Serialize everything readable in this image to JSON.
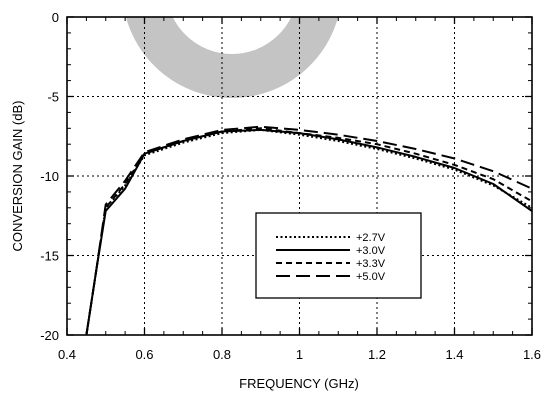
{
  "chart_data": {
    "type": "line",
    "title": "",
    "xlabel": "FREQUENCY (GHz)",
    "ylabel": "CONVERSION GAIN (dB)",
    "xlim": [
      0.4,
      1.6
    ],
    "ylim": [
      -20,
      0
    ],
    "xticks": [
      0.4,
      0.6,
      0.8,
      1.0,
      1.2,
      1.4,
      1.6
    ],
    "xtick_labels": [
      "0.4",
      "0.6",
      "0.8",
      "1",
      "1.2",
      "1.4",
      "1.6"
    ],
    "yticks": [
      -20,
      -15,
      -10,
      -5,
      0
    ],
    "ytick_labels": [
      "-20",
      "-15",
      "-10",
      "-5",
      "0"
    ],
    "grid": true,
    "legend_position": "lower-center-right",
    "watermark": "gray ring logo",
    "series": [
      {
        "name": "+2.7V",
        "line_style": "dotted",
        "x": [
          0.45,
          0.475,
          0.5,
          0.55,
          0.6,
          0.7,
          0.8,
          0.9,
          1.0,
          1.1,
          1.2,
          1.3,
          1.4,
          1.5,
          1.6
        ],
        "y": [
          -20,
          -16,
          -12,
          -10.6,
          -8.7,
          -7.9,
          -7.3,
          -7.1,
          -7.4,
          -7.8,
          -8.3,
          -8.9,
          -9.6,
          -10.6,
          -12.0
        ]
      },
      {
        "name": "+3.0V",
        "line_style": "solid",
        "x": [
          0.45,
          0.475,
          0.5,
          0.55,
          0.6,
          0.7,
          0.8,
          0.9,
          1.0,
          1.1,
          1.2,
          1.3,
          1.4,
          1.5,
          1.6
        ],
        "y": [
          -20,
          -16,
          -12.2,
          -10.8,
          -8.6,
          -7.8,
          -7.2,
          -7.1,
          -7.3,
          -7.7,
          -8.2,
          -8.8,
          -9.5,
          -10.5,
          -12.2
        ]
      },
      {
        "name": "+3.3V",
        "line_style": "dashed",
        "x": [
          0.45,
          0.475,
          0.5,
          0.55,
          0.6,
          0.7,
          0.8,
          0.9,
          1.0,
          1.1,
          1.2,
          1.3,
          1.4,
          1.5,
          1.6
        ],
        "y": [
          -20,
          -16,
          -12,
          -10.5,
          -8.6,
          -7.8,
          -7.2,
          -7.0,
          -7.3,
          -7.6,
          -8.0,
          -8.6,
          -9.3,
          -10.2,
          -11.6
        ]
      },
      {
        "name": "+5.0V",
        "line_style": "long-dash",
        "x": [
          0.45,
          0.475,
          0.5,
          0.55,
          0.6,
          0.7,
          0.8,
          0.9,
          1.0,
          1.1,
          1.2,
          1.3,
          1.4,
          1.5,
          1.6
        ],
        "y": [
          -20,
          -16,
          -11.8,
          -10.3,
          -8.5,
          -7.7,
          -7.1,
          -6.9,
          -7.1,
          -7.4,
          -7.8,
          -8.3,
          -8.9,
          -9.7,
          -10.8
        ]
      }
    ]
  }
}
